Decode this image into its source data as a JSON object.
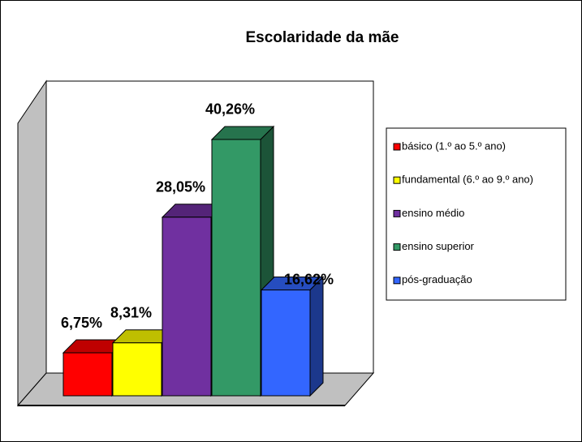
{
  "chart_data": {
    "type": "bar3d",
    "title": "Escolaridade da mãe",
    "categories": [
      "básico (1.º ao 5.º ano)",
      "fundamental (6.º ao 9.º ano)",
      "ensino médio",
      "ensino superior",
      "pós-graduação"
    ],
    "values": [
      6.75,
      8.31,
      28.05,
      40.26,
      16.62
    ],
    "value_labels": [
      "6,75%",
      "8,31%",
      "28,05%",
      "40,26%",
      "16,62%"
    ],
    "colors": [
      "#ff0000",
      "#ffff00",
      "#7030a0",
      "#339966",
      "#3366ff"
    ]
  }
}
